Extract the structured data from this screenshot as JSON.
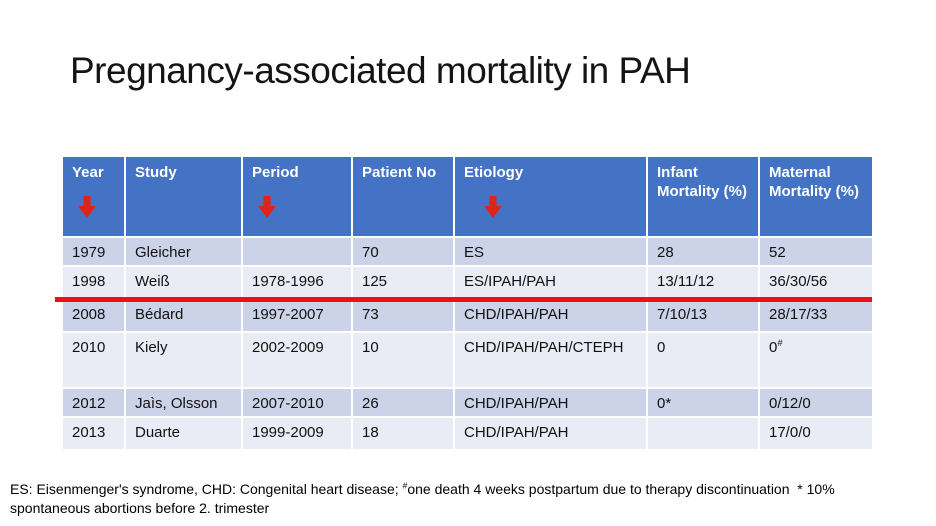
{
  "title": "Pregnancy-associated mortality in PAH",
  "colors": {
    "header_bg": "#4472c4",
    "band_dark": "#ccd3e8",
    "band_light": "#e9ebf5",
    "arrow_red": "#e02318",
    "line_red": "#ee1111",
    "header_text": "#ffffff",
    "body_text": "#111111"
  },
  "table": {
    "headers": [
      {
        "label": "Year",
        "arrow": true
      },
      {
        "label": "Study",
        "arrow": false
      },
      {
        "label": "Period",
        "arrow": true
      },
      {
        "label": "Patient No",
        "arrow": false
      },
      {
        "label": "Etiology",
        "arrow": true,
        "arrow_indent": true
      },
      {
        "label": "Infant Mortality (%)",
        "arrow": false
      },
      {
        "label": "Maternal Mortality (%)",
        "arrow": false
      }
    ],
    "rows": [
      {
        "cells": [
          "1979",
          "Gleicher",
          "",
          "70",
          "ES",
          "28",
          "52"
        ]
      },
      {
        "cells": [
          "1998",
          "Weiß",
          "1978-1996",
          "125",
          "ES/IPAH/PAH",
          "13/11/12",
          "36/30/56"
        ],
        "highlighted_by_red_line": true
      },
      {
        "cells": [
          "2008",
          "Bédard",
          "1997-2007",
          "73",
          "CHD/IPAH/PAH",
          "7/10/13",
          "28/17/33"
        ]
      },
      {
        "cells": [
          "2010",
          "Kiely",
          "2002-2009",
          "10",
          "CHD/IPAH/PAH/CTEPH",
          "0",
          {
            "text": "0",
            "sup": "#"
          }
        ]
      },
      {
        "cells": [
          "2012",
          "Jaìs, Olsson",
          "2007-2010",
          "26",
          "CHD/IPAH/PAH",
          "0*",
          "0/12/0"
        ]
      },
      {
        "cells": [
          "2013",
          "Duarte",
          "1999-2009",
          "18",
          "CHD/IPAH/PAH",
          "",
          "17/0/0"
        ]
      }
    ]
  },
  "footnote": {
    "segments": [
      {
        "text": "ES: Eisenmenger's syndrome, CHD: Congenital heart disease; "
      },
      {
        "sup": "#"
      },
      {
        "text": "one death 4 weeks postpartum due to therapy discontinuation  * 10% spontaneous abortions before 2. trimester"
      }
    ]
  }
}
